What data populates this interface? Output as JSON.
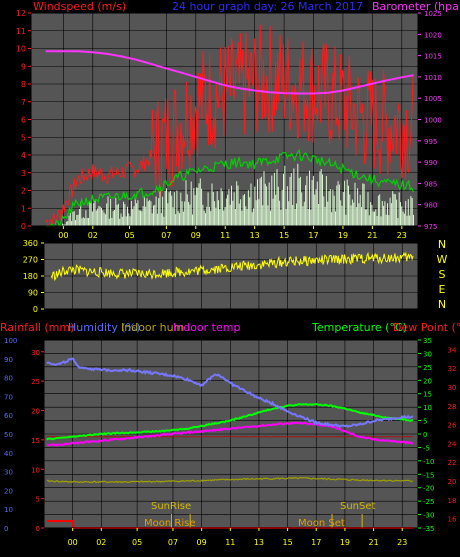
{
  "header": {
    "windspeed_label": "Windspeed (m/s)",
    "title": "24 hour graph day: 26 March 2017",
    "barometer_label": "Barometer (hpa)"
  },
  "colors": {
    "wind_gust": "#ff1a1a",
    "wind_avg": "#00d000",
    "wind_calm": "#d8f5d0",
    "barometer": "#ff33ff",
    "direction": "#ffff00",
    "humidity": "#7777ff",
    "indoor_humidity": "#a0a000",
    "indoor_temp": "#ff00ff",
    "temperature": "#00ff00",
    "dew_point": "#ff2020",
    "rainfall": "#ff0000",
    "axis_red": "#ff0000",
    "axis_blue": "#4f6fff",
    "axis_green": "#00ff00"
  },
  "compass": [
    "N",
    "W",
    "S",
    "E",
    "N"
  ],
  "bottom_legend": {
    "rainfall": "Rainfall (mm)",
    "humidity": "Humidity (%)",
    "indoor_hum": "Indoor hum",
    "indoor_temp": "Indoor temp",
    "temperature": "Temperature (°C)",
    "dew_point": "Dew Point (°C)"
  },
  "astro": {
    "sunrise": "SunRise",
    "sunset": "SunSet",
    "moonrise": "Moon Rise",
    "moonset": "Moon Set"
  },
  "chart_data": [
    {
      "type": "line",
      "title": "24 hour graph day: 26 March 2017",
      "x_ticks": [
        "00",
        "02",
        "05",
        "07",
        "09",
        "11",
        "13",
        "15",
        "17",
        "19",
        "21",
        "23"
      ],
      "y_left_ticks": [
        "0",
        "1",
        "2",
        "3",
        "4",
        "5",
        "6",
        "7",
        "8",
        "9",
        "10",
        "11",
        "12"
      ],
      "y_right_ticks": [
        "975",
        "980",
        "985",
        "990",
        "995",
        "1000",
        "1005",
        "1010",
        "1015",
        "1020",
        "1025"
      ],
      "ylim_left": [
        0,
        12
      ],
      "ylim_right": [
        975,
        1025
      ],
      "grid": true,
      "series": [
        {
          "name": "Barometer (hpa)",
          "axis": "right",
          "x": [
            -1.2,
            0,
            1,
            2,
            3,
            4,
            5,
            6,
            7,
            8,
            9,
            10,
            11,
            12,
            13,
            14,
            15,
            16,
            17,
            18,
            19,
            20,
            21,
            22,
            23,
            23.8
          ],
          "y": [
            1016,
            1016,
            1016,
            1015.8,
            1015.4,
            1014.8,
            1014,
            1013,
            1012,
            1011,
            1010,
            1009,
            1008,
            1007.3,
            1006.8,
            1006.4,
            1006.2,
            1006.1,
            1006.1,
            1006.3,
            1006.8,
            1007.6,
            1008.4,
            1009.2,
            1009.9,
            1010.4
          ]
        },
        {
          "name": "Wind gust (m/s)",
          "axis": "left",
          "x": [
            -1.2,
            -0.5,
            0,
            0.5,
            1,
            2,
            3,
            4,
            5,
            6,
            7,
            8,
            9,
            10,
            11,
            12,
            13,
            14,
            15,
            16,
            17,
            18,
            19,
            20,
            21,
            22,
            23,
            23.8
          ],
          "y": [
            0.2,
            0.4,
            1.0,
            1.8,
            2.6,
            3.0,
            2.8,
            3.0,
            3.2,
            3.8,
            4.6,
            5.6,
            6.6,
            7.0,
            7.2,
            7.4,
            7.8,
            8.0,
            7.8,
            7.6,
            7.4,
            7.0,
            6.6,
            6.0,
            5.6,
            5.4,
            5.6,
            5.2
          ]
        },
        {
          "name": "Wind average (m/s)",
          "axis": "left",
          "x": [
            -1.2,
            -0.5,
            0,
            0.5,
            1,
            2,
            3,
            4,
            5,
            6,
            7,
            8,
            9,
            10,
            11,
            12,
            13,
            14,
            15,
            16,
            17,
            18,
            19,
            20,
            21,
            22,
            23,
            23.8
          ],
          "y": [
            0,
            0,
            0.3,
            0.9,
            1.3,
            1.5,
            1.6,
            1.7,
            1.8,
            2.0,
            2.4,
            2.8,
            3.1,
            3.3,
            3.5,
            3.6,
            3.5,
            3.7,
            3.9,
            4.0,
            3.8,
            3.5,
            3.2,
            2.9,
            2.6,
            2.4,
            2.3,
            2.2
          ]
        },
        {
          "name": "Wind speed (m/s)",
          "axis": "left",
          "x": [
            -1.2,
            -0.5,
            0,
            0.5,
            1,
            2,
            3,
            4,
            5,
            6,
            7,
            8,
            9,
            10,
            11,
            12,
            13,
            14,
            15,
            16,
            17,
            18,
            19,
            20,
            21,
            22,
            23,
            23.8
          ],
          "y": [
            0,
            0,
            0.1,
            0.5,
            0.8,
            0.9,
            1.0,
            1.0,
            1.0,
            1.1,
            1.3,
            1.5,
            1.6,
            1.7,
            1.8,
            1.9,
            1.8,
            1.9,
            2.0,
            2.1,
            2.0,
            1.8,
            1.6,
            1.5,
            1.3,
            1.2,
            1.1,
            1.0
          ]
        }
      ]
    },
    {
      "type": "line",
      "title": "",
      "y_ticks": [
        "0",
        "90",
        "180",
        "270",
        "360"
      ],
      "ylim": [
        0,
        360
      ],
      "grid": true,
      "series": [
        {
          "name": "Wind direction (°)",
          "x": [
            -1.5,
            -1,
            -0.5,
            0,
            1,
            2,
            3,
            4,
            5,
            6,
            7,
            8,
            9,
            10,
            11,
            12,
            13,
            14,
            15,
            16,
            17,
            18,
            19,
            20,
            21,
            22,
            23,
            23.8
          ],
          "y": [
            180,
            190,
            210,
            215,
            205,
            200,
            195,
            192,
            190,
            195,
            200,
            205,
            212,
            220,
            228,
            235,
            242,
            250,
            258,
            262,
            265,
            268,
            272,
            275,
            277,
            278,
            280,
            282
          ]
        }
      ]
    },
    {
      "type": "line",
      "title": "",
      "x_ticks": [
        "00",
        "02",
        "05",
        "07",
        "09",
        "11",
        "13",
        "15",
        "17",
        "19",
        "21",
        "23"
      ],
      "y_rain_ticks": [
        "0",
        "5",
        "10",
        "15",
        "20",
        "25",
        "30"
      ],
      "y_humidity_ticks": [
        "0",
        "10",
        "20",
        "30",
        "40",
        "50",
        "60",
        "70",
        "80",
        "90",
        "100"
      ],
      "y_temp_ticks": [
        "-35",
        "-30",
        "-25",
        "-20",
        "-15",
        "-10",
        "-5",
        "0",
        "5",
        "10",
        "15",
        "20",
        "25",
        "30",
        "35"
      ],
      "y_dew_ticks": [
        "16",
        "18",
        "20",
        "22",
        "24",
        "26",
        "28",
        "30",
        "32",
        "34"
      ],
      "ylim_humidity": [
        0,
        100
      ],
      "ylim_temp": [
        -35,
        35
      ],
      "grid": true,
      "series": [
        {
          "name": "Humidity (%)",
          "axis": "humidity",
          "x": [
            -1.8,
            -1,
            0,
            0.3,
            1,
            2,
            3,
            4,
            5,
            6,
            7,
            8,
            9,
            9.5,
            10,
            10.5,
            11,
            12,
            13,
            14,
            15,
            16,
            17,
            18,
            19,
            20,
            21,
            22,
            23,
            23.8
          ],
          "y": [
            88,
            87,
            90,
            86,
            85,
            84,
            84,
            84,
            83,
            82,
            81,
            79,
            76,
            79,
            82,
            80,
            77,
            73,
            69,
            66,
            62,
            59,
            56,
            55,
            54,
            55,
            57,
            58,
            59,
            59
          ]
        },
        {
          "name": "Indoor hum",
          "axis": "humidity",
          "x": [
            -1.8,
            0,
            4,
            8,
            12,
            16,
            20,
            23.8
          ],
          "y": [
            25,
            24.5,
            24.5,
            25,
            26,
            26.5,
            25.5,
            25
          ]
        },
        {
          "name": "Temperature (°C)",
          "axis": "temp",
          "x": [
            -1.8,
            -1,
            0,
            1,
            2,
            3,
            4,
            5,
            6,
            7,
            8,
            9,
            10,
            11,
            12,
            13,
            14,
            15,
            16,
            17,
            18,
            19,
            20,
            21,
            22,
            23,
            23.8
          ],
          "y": [
            -2,
            -1.5,
            -1,
            -0.5,
            0,
            0.3,
            0.5,
            0.8,
            1,
            1.5,
            2,
            3,
            4,
            5,
            6.5,
            8,
            9.5,
            10.5,
            11,
            11,
            10.5,
            9.5,
            8,
            7,
            6,
            5.5,
            5
          ]
        },
        {
          "name": "Indoor temp",
          "axis": "temp",
          "x": [
            -1.8,
            -1,
            0,
            1,
            2,
            3,
            4,
            5,
            6,
            7,
            8,
            9,
            10,
            11,
            12,
            13,
            14,
            15,
            16,
            17,
            18,
            19,
            20,
            21,
            22,
            23,
            23.8
          ],
          "y": [
            -4,
            -4,
            -3.5,
            -3,
            -2.5,
            -2,
            -1.5,
            -1,
            -0.5,
            0,
            0.5,
            1,
            1.5,
            2,
            2.5,
            3,
            3.5,
            4,
            4,
            3.5,
            3,
            1,
            -1,
            -2,
            -2.5,
            -3,
            -3.5
          ]
        },
        {
          "name": "Dew Point (°C)",
          "axis": "temp",
          "x": [
            -1.8,
            0,
            4,
            8,
            12,
            16,
            20,
            23.8
          ],
          "y": [
            -1,
            -1,
            -1,
            -1,
            -1,
            -1,
            -1,
            -1
          ]
        },
        {
          "name": "Rainfall (mm)",
          "axis": "rain",
          "x": [
            -1.8,
            0,
            0.05,
            23.8
          ],
          "y": [
            1.2,
            1.2,
            0,
            0
          ]
        }
      ]
    }
  ]
}
